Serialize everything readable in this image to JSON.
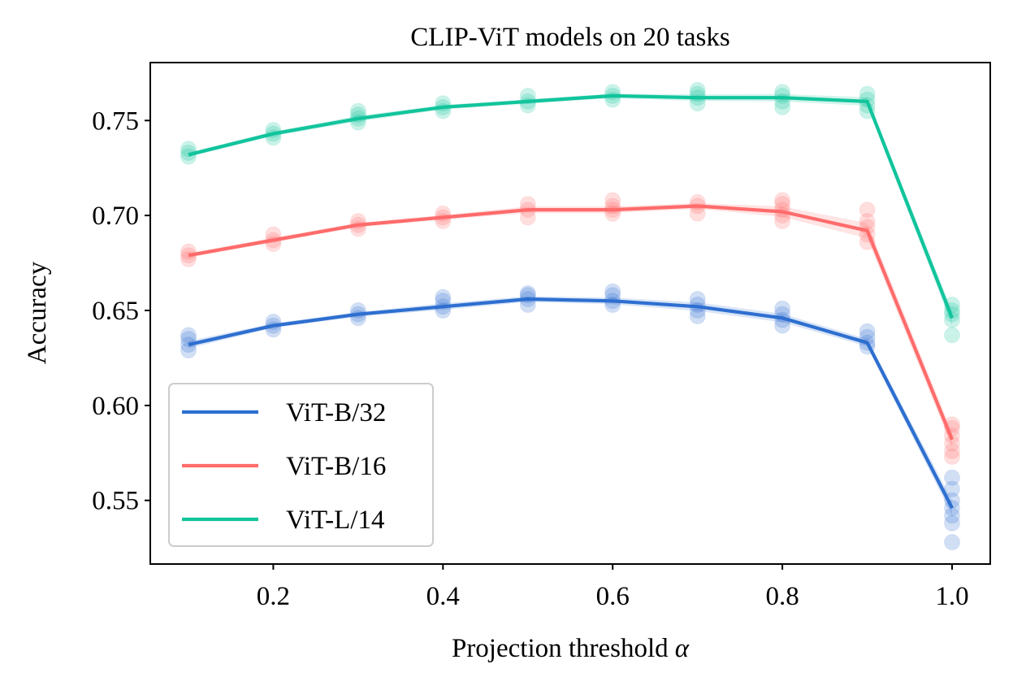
{
  "chart_data": {
    "type": "line",
    "title": "CLIP-ViT models on 20 tasks",
    "xlabel": "Projection threshold",
    "xlabel_symbol": "α",
    "ylabel": "Accuracy",
    "xlim": [
      0.055,
      1.045
    ],
    "ylim": [
      0.5165,
      0.7805
    ],
    "x_ticks": [
      0.2,
      0.4,
      0.6,
      0.8,
      1.0
    ],
    "x_tick_labels": [
      "0.2",
      "0.4",
      "0.6",
      "0.8",
      "1.0"
    ],
    "y_ticks": [
      0.55,
      0.6,
      0.65,
      0.7,
      0.75
    ],
    "y_tick_labels": [
      "0.55",
      "0.60",
      "0.65",
      "0.70",
      "0.75"
    ],
    "legend_position": "lower-left",
    "x": [
      0.1,
      0.2,
      0.3,
      0.4,
      0.5,
      0.6,
      0.7,
      0.8,
      0.9,
      1.0
    ],
    "series": [
      {
        "name": "ViT-B/32",
        "color": "#2e6fd0",
        "values": [
          0.632,
          0.642,
          0.648,
          0.652,
          0.656,
          0.655,
          0.652,
          0.646,
          0.633,
          0.546
        ],
        "scatter": [
          [
            0.629,
            0.632,
            0.635,
            0.637
          ],
          [
            0.64,
            0.642,
            0.644
          ],
          [
            0.646,
            0.648,
            0.65
          ],
          [
            0.65,
            0.652,
            0.655,
            0.657
          ],
          [
            0.653,
            0.656,
            0.658,
            0.659
          ],
          [
            0.653,
            0.655,
            0.658,
            0.66
          ],
          [
            0.647,
            0.65,
            0.653,
            0.656
          ],
          [
            0.642,
            0.645,
            0.648,
            0.651
          ],
          [
            0.631,
            0.633,
            0.636,
            0.639
          ],
          [
            0.528,
            0.538,
            0.542,
            0.546,
            0.55,
            0.556,
            0.562
          ]
        ]
      },
      {
        "name": "ViT-B/16",
        "color": "#ff6b6b",
        "values": [
          0.679,
          0.687,
          0.695,
          0.699,
          0.703,
          0.703,
          0.705,
          0.702,
          0.692,
          0.582
        ],
        "scatter": [
          [
            0.677,
            0.679,
            0.681
          ],
          [
            0.685,
            0.687,
            0.69
          ],
          [
            0.693,
            0.695,
            0.697
          ],
          [
            0.697,
            0.699,
            0.701
          ],
          [
            0.699,
            0.703,
            0.706
          ],
          [
            0.701,
            0.703,
            0.705,
            0.708
          ],
          [
            0.701,
            0.705,
            0.707
          ],
          [
            0.697,
            0.7,
            0.703,
            0.706,
            0.708
          ],
          [
            0.686,
            0.69,
            0.694,
            0.697,
            0.703
          ],
          [
            0.573,
            0.576,
            0.58,
            0.584,
            0.588,
            0.59
          ]
        ]
      },
      {
        "name": "ViT-L/14",
        "color": "#11c49c",
        "values": [
          0.732,
          0.743,
          0.751,
          0.757,
          0.76,
          0.763,
          0.762,
          0.762,
          0.76,
          0.646
        ],
        "scatter": [
          [
            0.731,
            0.733,
            0.735
          ],
          [
            0.741,
            0.743,
            0.745
          ],
          [
            0.749,
            0.751,
            0.753,
            0.755
          ],
          [
            0.755,
            0.757,
            0.759
          ],
          [
            0.758,
            0.76,
            0.763
          ],
          [
            0.761,
            0.763,
            0.765
          ],
          [
            0.759,
            0.762,
            0.764,
            0.766
          ],
          [
            0.757,
            0.76,
            0.763,
            0.765
          ],
          [
            0.755,
            0.758,
            0.761,
            0.764
          ],
          [
            0.637,
            0.645,
            0.648,
            0.65,
            0.653
          ]
        ]
      }
    ]
  }
}
